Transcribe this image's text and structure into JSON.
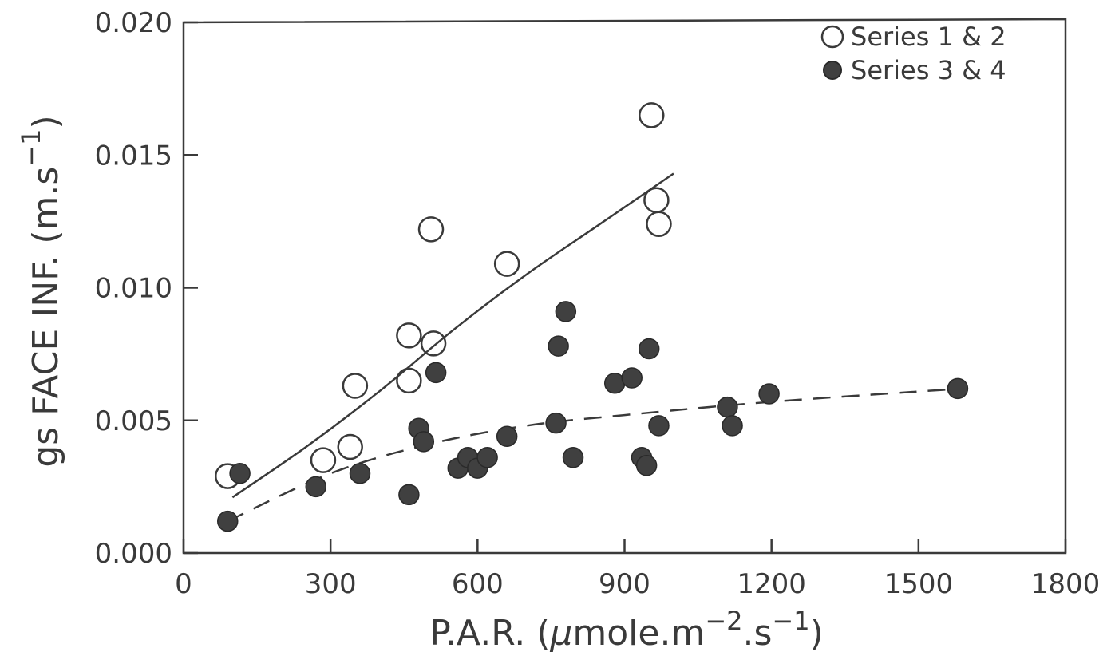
{
  "chart_data": {
    "type": "scatter",
    "title": "",
    "xlabel": "P.A.R. (μmole.m⁻².s⁻¹)",
    "ylabel": "gs FACE INF. (m.s⁻¹)",
    "xlabel_parts": {
      "base": "P.A.R. (",
      "mu": "μ",
      "mid": "mole.m",
      "sup1": "−2",
      "mid2": ".s",
      "sup2": "−1",
      "end": ")"
    },
    "ylabel_parts": {
      "base": "gs FACE INF. (m.s",
      "sup": "−1",
      "end": ")"
    },
    "xlim": [
      0,
      1800
    ],
    "ylim": [
      0,
      0.02
    ],
    "xticks": [
      "0",
      "300",
      "600",
      "900",
      "1200",
      "1500",
      "1800"
    ],
    "yticks": [
      "0.000",
      "0.005",
      "0.010",
      "0.015",
      "0.020"
    ],
    "grid": false,
    "legend_position": "top-right",
    "series": [
      {
        "name": "Series 1 & 2",
        "marker": "open-circle",
        "points": [
          [
            90,
            0.0029
          ],
          [
            285,
            0.0035
          ],
          [
            340,
            0.004
          ],
          [
            350,
            0.0063
          ],
          [
            460,
            0.0082
          ],
          [
            460,
            0.0065
          ],
          [
            505,
            0.0122
          ],
          [
            510,
            0.0079
          ],
          [
            660,
            0.0109
          ],
          [
            955,
            0.0165
          ],
          [
            965,
            0.0133
          ],
          [
            970,
            0.0124
          ]
        ],
        "fit": {
          "style": "solid",
          "points": [
            [
              100,
              0.0021
            ],
            [
              250,
              0.004
            ],
            [
              400,
              0.0061
            ],
            [
              550,
              0.0084
            ],
            [
              700,
              0.0105
            ],
            [
              850,
              0.0124
            ],
            [
              1000,
              0.0143
            ]
          ]
        }
      },
      {
        "name": "Series 3 & 4",
        "marker": "filled-circle",
        "points": [
          [
            90,
            0.0012
          ],
          [
            115,
            0.003
          ],
          [
            270,
            0.0025
          ],
          [
            360,
            0.003
          ],
          [
            460,
            0.0022
          ],
          [
            480,
            0.0047
          ],
          [
            490,
            0.0042
          ],
          [
            515,
            0.0068
          ],
          [
            560,
            0.0032
          ],
          [
            580,
            0.0036
          ],
          [
            600,
            0.0032
          ],
          [
            620,
            0.0036
          ],
          [
            660,
            0.0044
          ],
          [
            760,
            0.0049
          ],
          [
            765,
            0.0078
          ],
          [
            780,
            0.0091
          ],
          [
            795,
            0.0036
          ],
          [
            880,
            0.0064
          ],
          [
            915,
            0.0066
          ],
          [
            935,
            0.0036
          ],
          [
            945,
            0.0033
          ],
          [
            950,
            0.0077
          ],
          [
            970,
            0.0048
          ],
          [
            1110,
            0.0055
          ],
          [
            1120,
            0.0048
          ],
          [
            1195,
            0.006
          ],
          [
            1580,
            0.0062
          ]
        ],
        "fit": {
          "style": "dashed",
          "points": [
            [
              90,
              0.0012
            ],
            [
              300,
              0.003
            ],
            [
              500,
              0.0041
            ],
            [
              700,
              0.0048
            ],
            [
              900,
              0.0052
            ],
            [
              1200,
              0.0057
            ],
            [
              1590,
              0.0062
            ]
          ]
        }
      }
    ]
  }
}
